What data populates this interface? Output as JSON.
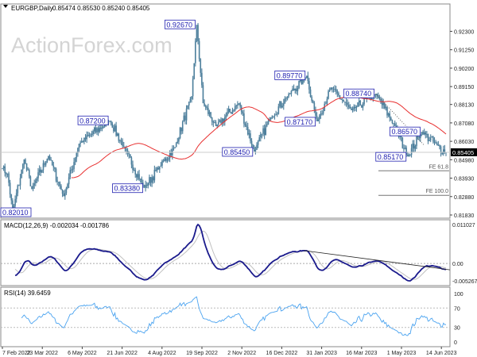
{
  "header": {
    "symbol": "EURGBP,Daily",
    "ohlc": "0.85474 0.85530 0.85240 0.85405"
  },
  "watermark": "ActionForex.com",
  "chart_data": {
    "type": "candlestick",
    "title": "EURGBP,Daily",
    "price_axis_ticks": [
      "0.92300",
      "0.91250",
      "0.90200",
      "0.89150",
      "0.88130",
      "0.87080",
      "0.86030",
      "0.84980",
      "0.83930",
      "0.82880",
      "0.81830"
    ],
    "ylim": [
      0.8183,
      0.93
    ],
    "current_price": "0.85405",
    "current_price_value": 0.85405,
    "date_ticks": [
      "7 Feb 2022",
      "23 Mar 2022",
      "6 May 2022",
      "21 Jun 2022",
      "4 Aug 2022",
      "19 Sep 2022",
      "2 Nov 2022",
      "16 Dec 2022",
      "31 Jan 2023",
      "16 Mar 2023",
      "1 May 2023",
      "14 Jun 2023"
    ],
    "bar_count": 348,
    "pivots": [
      [
        0,
        0.845
      ],
      [
        4,
        0.842
      ],
      [
        8,
        0.8201
      ],
      [
        17,
        0.85
      ],
      [
        23,
        0.833
      ],
      [
        36,
        0.852
      ],
      [
        48,
        0.829
      ],
      [
        60,
        0.859
      ],
      [
        84,
        0.872
      ],
      [
        95,
        0.857
      ],
      [
        111,
        0.8338
      ],
      [
        123,
        0.846
      ],
      [
        135,
        0.857
      ],
      [
        148,
        0.886
      ],
      [
        152,
        0.9267
      ],
      [
        157,
        0.882
      ],
      [
        167,
        0.869
      ],
      [
        185,
        0.882
      ],
      [
        197,
        0.8545
      ],
      [
        210,
        0.874
      ],
      [
        223,
        0.886
      ],
      [
        238,
        0.8977
      ],
      [
        246,
        0.8717
      ],
      [
        257,
        0.891
      ],
      [
        273,
        0.878
      ],
      [
        292,
        0.8874
      ],
      [
        307,
        0.869
      ],
      [
        317,
        0.8517
      ],
      [
        328,
        0.8657
      ],
      [
        340,
        0.858
      ],
      [
        347,
        0.85405
      ]
    ],
    "labels": [
      {
        "text": "0.82010",
        "bar": 8,
        "price": 0.8201
      },
      {
        "text": "0.87200",
        "bar": 84,
        "price": 0.872
      },
      {
        "text": "0.83380",
        "bar": 111,
        "price": 0.8338
      },
      {
        "text": "0.92670",
        "bar": 152,
        "price": 0.9267
      },
      {
        "text": "0.85450",
        "bar": 197,
        "price": 0.8545
      },
      {
        "text": "0.89770",
        "bar": 238,
        "price": 0.8977
      },
      {
        "text": "0.87170",
        "bar": 246,
        "price": 0.8717
      },
      {
        "text": "0.88740",
        "bar": 292,
        "price": 0.8874
      },
      {
        "text": "0.86570",
        "bar": 328,
        "price": 0.8657
      },
      {
        "text": "0.85170",
        "bar": 317,
        "price": 0.8517
      }
    ],
    "fib_levels": [
      {
        "text": "FE 61.8",
        "price": 0.8435
      },
      {
        "text": "FE 100.0",
        "price": 0.8295
      }
    ],
    "moving_average_period": 55,
    "macd": {
      "label": "MACD(12,26,9) -0.002034 -0.001786",
      "ticks": [
        "0.011027",
        "0.00",
        "-0.005267"
      ],
      "ylim": [
        -0.005267,
        0.011027
      ]
    },
    "rsi": {
      "label": "RSI(14) 39.6459",
      "ticks": [
        "100",
        "70",
        "30",
        "0"
      ],
      "ylim": [
        0,
        100
      ]
    }
  },
  "colors": {
    "candle": "#4d7f9c",
    "ma": "#e83030",
    "macd": "#1a1a8c",
    "signal": "#c0c0c0",
    "rsi": "#4aa3f0",
    "label": "#2020b0"
  }
}
